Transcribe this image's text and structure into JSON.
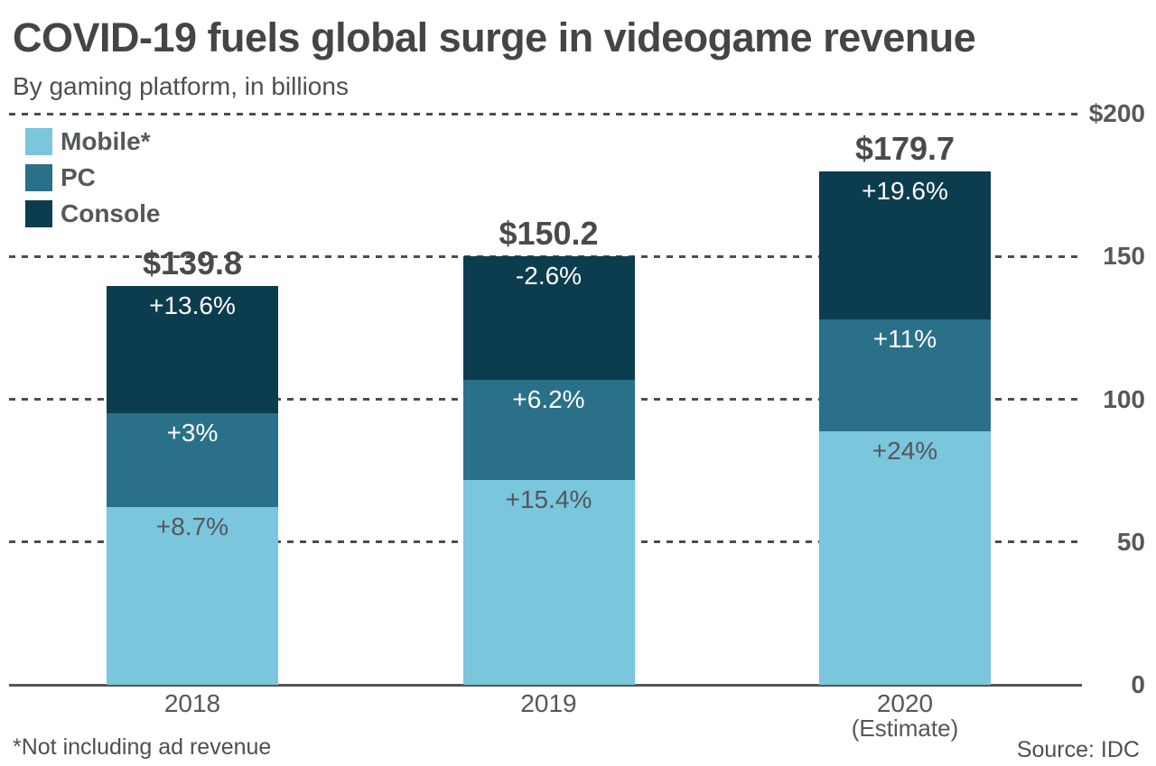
{
  "header": {
    "title": "COVID-19 fuels global surge in videogame revenue",
    "subtitle": "By gaming platform, in billions"
  },
  "chart_data": {
    "type": "bar",
    "stacked": true,
    "title": "COVID-19 fuels global surge in videogame revenue",
    "subtitle": "By gaming platform, in billions",
    "categories": [
      "2018",
      "2019",
      "2020"
    ],
    "category_notes": [
      "",
      "",
      "(Estimate)"
    ],
    "totals_labels": [
      "$139.8",
      "$150.2",
      "$179.7"
    ],
    "totals_values": [
      139.8,
      150.2,
      179.7
    ],
    "units": "USD billions",
    "series_order": "bottom-to-top",
    "series": [
      {
        "name": "Mobile*",
        "color": "#7ac6dd",
        "values": [
          62.1,
          71.6,
          88.8
        ],
        "growth_labels": [
          "+8.7%",
          "+15.4%",
          "+24%"
        ],
        "label_color": "#54575b"
      },
      {
        "name": "PC",
        "color": "#2a7089",
        "values": [
          33.1,
          35.2,
          39.1
        ],
        "growth_labels": [
          "+3%",
          "+6.2%",
          "+11%"
        ],
        "label_color": "#fdfdfd"
      },
      {
        "name": "Console",
        "color": "#0c3d4f",
        "values": [
          44.6,
          43.4,
          51.8
        ],
        "growth_labels": [
          "+13.6%",
          "-2.6%",
          "+19.6%"
        ],
        "label_color": "#fdfdfd"
      }
    ],
    "ylim": [
      0,
      200
    ],
    "yticks": [
      {
        "value": 200,
        "label": "$200"
      },
      {
        "value": 150,
        "label": "150"
      },
      {
        "value": 100,
        "label": "100"
      },
      {
        "value": 50,
        "label": "50"
      },
      {
        "value": 0,
        "label": "0"
      }
    ],
    "grid": "horizontal dashed, zero line solid",
    "legend_position": "top-left inside plot",
    "grid_color": "#4d4d4d"
  },
  "footer": {
    "footnote": "*Not including ad revenue",
    "source": "Source: IDC"
  }
}
